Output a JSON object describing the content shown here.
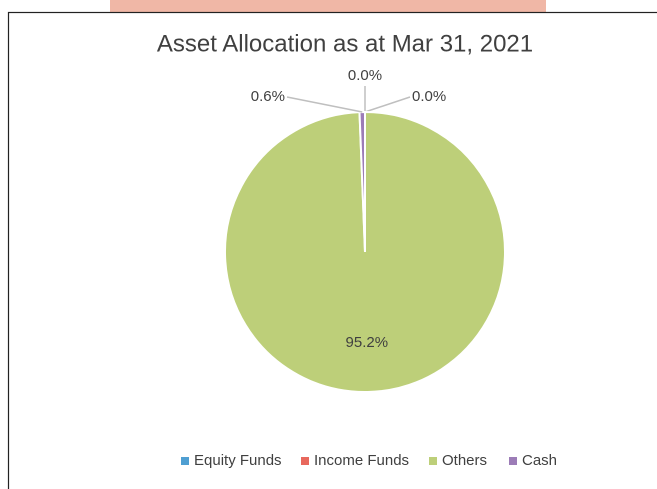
{
  "chart_data": {
    "type": "pie",
    "title": "Asset Allocation as at Mar 31, 2021",
    "categories": [
      "Equity Funds",
      "Income Funds",
      "Others",
      "Cash"
    ],
    "values": [
      0,
      0,
      95.2,
      0.6
    ],
    "value_labels": [
      "0.0%",
      "0.0%",
      "95.2%",
      "0.6%"
    ],
    "colors": [
      "#4f9fd2",
      "#e8685d",
      "#bdcf79",
      "#9c7cb7"
    ],
    "legend": "bottom"
  }
}
